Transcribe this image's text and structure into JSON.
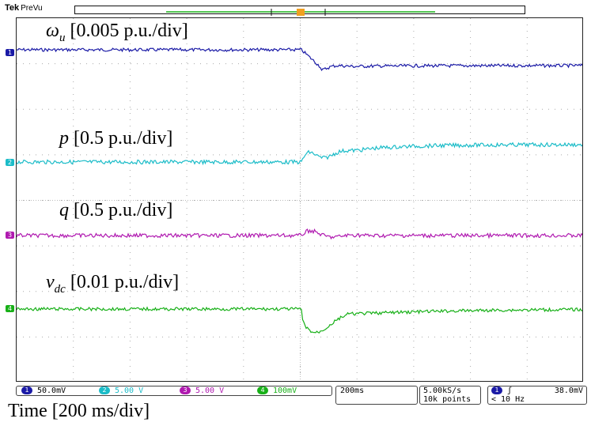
{
  "scope": {
    "brand": "Tek",
    "mode": "PreVu",
    "trigger_marker": "T"
  },
  "traces": [
    {
      "id": "1",
      "label_symbol": "ω",
      "label_sub": "u",
      "label_scale": "[0.005 p.u./div]",
      "color": "#1a1aa6"
    },
    {
      "id": "2",
      "label_symbol": "p",
      "label_sub": "",
      "label_scale": "[0.5 p.u./div]",
      "color": "#1bbcc8"
    },
    {
      "id": "3",
      "label_symbol": "q",
      "label_sub": "",
      "label_scale": "[0.5 p.u./div]",
      "color": "#b01ab0"
    },
    {
      "id": "4",
      "label_symbol": "v",
      "label_sub": "dc",
      "label_scale": "[0.01 p.u./div]",
      "color": "#18b018"
    }
  ],
  "status": {
    "channels": [
      {
        "num": "1",
        "value": "50.0mV",
        "color": "#1a1aa6"
      },
      {
        "num": "2",
        "value": "5.00 V",
        "color": "#1bbcc8"
      },
      {
        "num": "3",
        "value": "5.00 V",
        "color": "#b01ab0"
      },
      {
        "num": "4",
        "value": "100mV",
        "color": "#18b018"
      }
    ],
    "timebase": "200ms",
    "sample_rate": "5.00kS/s",
    "record_length": "10k points",
    "trigger_channel": "1",
    "trigger_slope": "ʃ",
    "trigger_level": "38.0mV",
    "trigger_freq": "< 10 Hz"
  },
  "xaxis_label": "Time [200 ms/div]"
}
